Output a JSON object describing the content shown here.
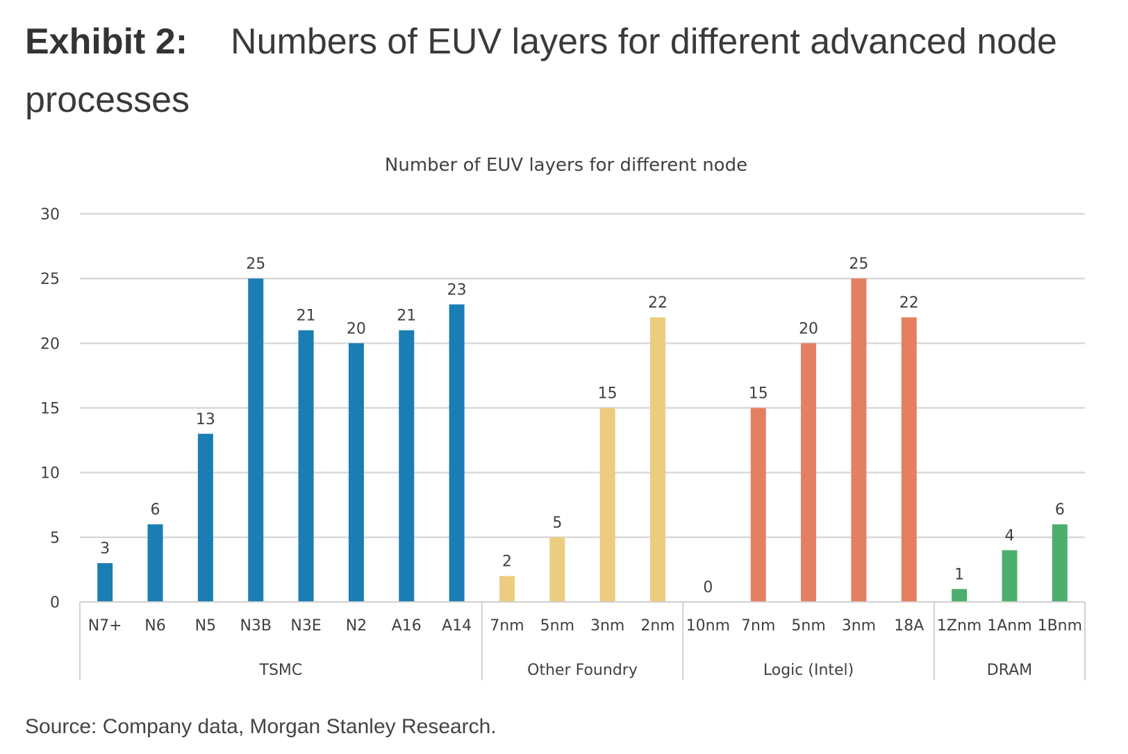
{
  "exhibit": {
    "label": "Exhibit 2:",
    "title": "Numbers of EUV layers for different advanced node processes"
  },
  "source": "Source: Company data, Morgan Stanley Research.",
  "colors": {
    "TSMC": "#1a7db4",
    "Other Foundry": "#eccc7e",
    "Logic (Intel)": "#e57f62",
    "DRAM": "#4caf6d",
    "grid": "#d9d9d9",
    "axis": "#d0d0d0"
  },
  "chart_data": {
    "type": "bar",
    "title": "Number of EUV layers for different node",
    "xlabel": "",
    "ylabel": "",
    "ylim": [
      0,
      30
    ],
    "yticks": [
      0,
      5,
      10,
      15,
      20,
      25,
      30
    ],
    "grid": true,
    "groups": [
      {
        "name": "TSMC",
        "categories": [
          "N7+",
          "N6",
          "N5",
          "N3B",
          "N3E",
          "N2",
          "A16",
          "A14"
        ],
        "values": [
          3,
          6,
          13,
          25,
          21,
          20,
          21,
          23
        ]
      },
      {
        "name": "Other Foundry",
        "categories": [
          "7nm",
          "5nm",
          "3nm",
          "2nm"
        ],
        "values": [
          2,
          5,
          15,
          22
        ]
      },
      {
        "name": "Logic (Intel)",
        "categories": [
          "10nm",
          "7nm",
          "5nm",
          "3nm",
          "18A"
        ],
        "values": [
          0,
          15,
          20,
          25,
          22
        ]
      },
      {
        "name": "DRAM",
        "categories": [
          "1Znm",
          "1Anm",
          "1Bnm"
        ],
        "values": [
          1,
          4,
          6
        ]
      }
    ]
  }
}
